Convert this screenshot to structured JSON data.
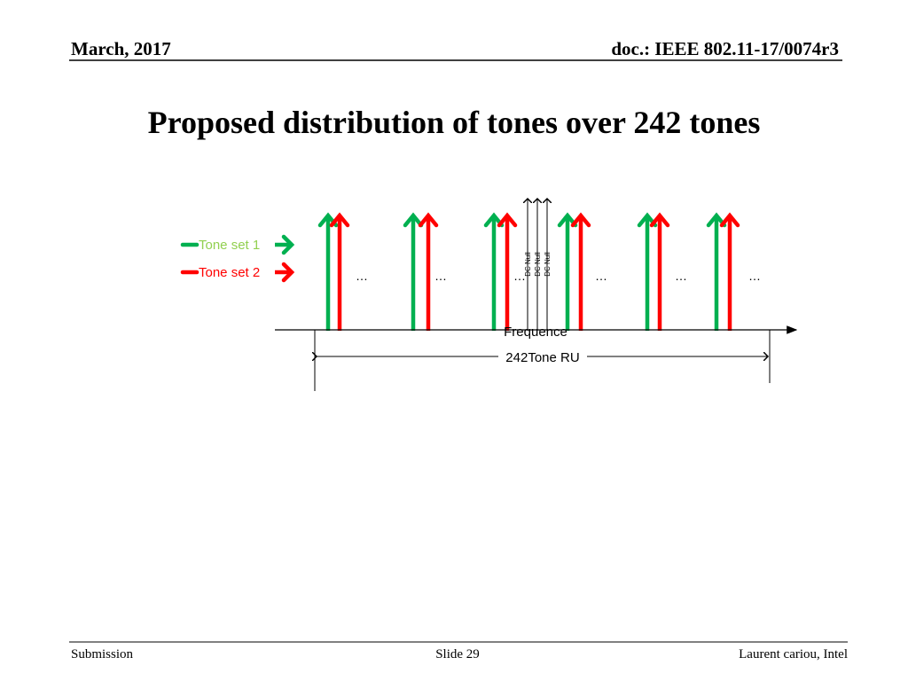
{
  "header": {
    "date": "March, 2017",
    "doc": "doc.: IEEE 802.11-17/0074r3"
  },
  "title": "Proposed distribution of tones over 242 tones",
  "diagram": {
    "legend": [
      "Tone set 1",
      "Tone set 2"
    ],
    "ellipses": [
      "…",
      "…",
      "…",
      "…",
      "…",
      "…"
    ],
    "dc_nulls": [
      "DC Null",
      "DC Null",
      "DC Null"
    ],
    "axis_label": "Frequence",
    "span_label": "242Tone RU"
  },
  "footer": {
    "left": "Submission",
    "center": "Slide 29",
    "right": "Laurent cariou, Intel"
  }
}
